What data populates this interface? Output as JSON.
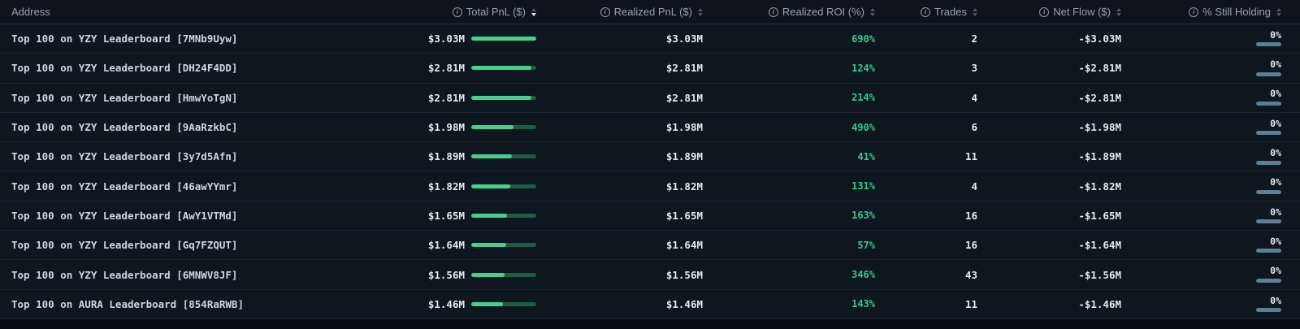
{
  "colors": {
    "page-bg": "#070b12",
    "row-bg": "#0e1620",
    "header-bg": "#0d141d",
    "accent-green": "#46d08d",
    "bar-track-green": "#1e5c44",
    "roi-green": "#34c98a",
    "holding-slate": "#5d7f91"
  },
  "table": {
    "columns": [
      {
        "key": "address",
        "label": "Address",
        "info": false,
        "sortable": false
      },
      {
        "key": "total-pnl",
        "label": "Total PnL ($)",
        "info": true,
        "sortable": true,
        "sort": "desc"
      },
      {
        "key": "realized-pnl",
        "label": "Realized PnL ($)",
        "info": true,
        "sortable": true
      },
      {
        "key": "realized-roi",
        "label": "Realized ROI (%)",
        "info": true,
        "sortable": true
      },
      {
        "key": "trades",
        "label": "Trades",
        "info": true,
        "sortable": true
      },
      {
        "key": "net-flow",
        "label": "Net Flow ($)",
        "info": true,
        "sortable": true
      },
      {
        "key": "still-holding",
        "label": "% Still Holding",
        "info": true,
        "sortable": true
      }
    ],
    "rows": [
      {
        "address": "Top 100 on YZY Leaderboard [7MNb9Uyw]",
        "total_pnl": "$3.03M",
        "total_pnl_bar_pct": 100,
        "realized_pnl": "$3.03M",
        "realized_roi": "690%",
        "trades": "2",
        "net_flow": "-$3.03M",
        "still_holding": "0%",
        "still_holding_bar_pct": 0
      },
      {
        "address": "Top 100 on YZY Leaderboard [DH24F4DD]",
        "total_pnl": "$2.81M",
        "total_pnl_bar_pct": 92.7,
        "realized_pnl": "$2.81M",
        "realized_roi": "124%",
        "trades": "3",
        "net_flow": "-$2.81M",
        "still_holding": "0%",
        "still_holding_bar_pct": 0
      },
      {
        "address": "Top 100 on YZY Leaderboard [HmwYoTgN]",
        "total_pnl": "$2.81M",
        "total_pnl_bar_pct": 92.7,
        "realized_pnl": "$2.81M",
        "realized_roi": "214%",
        "trades": "4",
        "net_flow": "-$2.81M",
        "still_holding": "0%",
        "still_holding_bar_pct": 0
      },
      {
        "address": "Top 100 on YZY Leaderboard [9AaRzkbC]",
        "total_pnl": "$1.98M",
        "total_pnl_bar_pct": 65.3,
        "realized_pnl": "$1.98M",
        "realized_roi": "490%",
        "trades": "6",
        "net_flow": "-$1.98M",
        "still_holding": "0%",
        "still_holding_bar_pct": 0
      },
      {
        "address": "Top 100 on YZY Leaderboard [3y7d5Afn]",
        "total_pnl": "$1.89M",
        "total_pnl_bar_pct": 62.4,
        "realized_pnl": "$1.89M",
        "realized_roi": "41%",
        "trades": "11",
        "net_flow": "-$1.89M",
        "still_holding": "0%",
        "still_holding_bar_pct": 0
      },
      {
        "address": "Top 100 on YZY Leaderboard [46awYYmr]",
        "total_pnl": "$1.82M",
        "total_pnl_bar_pct": 60.1,
        "realized_pnl": "$1.82M",
        "realized_roi": "131%",
        "trades": "4",
        "net_flow": "-$1.82M",
        "still_holding": "0%",
        "still_holding_bar_pct": 0
      },
      {
        "address": "Top 100 on YZY Leaderboard [AwY1VTMd]",
        "total_pnl": "$1.65M",
        "total_pnl_bar_pct": 54.5,
        "realized_pnl": "$1.65M",
        "realized_roi": "163%",
        "trades": "16",
        "net_flow": "-$1.65M",
        "still_holding": "0%",
        "still_holding_bar_pct": 0
      },
      {
        "address": "Top 100 on YZY Leaderboard [Gq7FZQUT]",
        "total_pnl": "$1.64M",
        "total_pnl_bar_pct": 54.1,
        "realized_pnl": "$1.64M",
        "realized_roi": "57%",
        "trades": "16",
        "net_flow": "-$1.64M",
        "still_holding": "0%",
        "still_holding_bar_pct": 0
      },
      {
        "address": "Top 100 on YZY Leaderboard [6MNWV8JF]",
        "total_pnl": "$1.56M",
        "total_pnl_bar_pct": 51.5,
        "realized_pnl": "$1.56M",
        "realized_roi": "346%",
        "trades": "43",
        "net_flow": "-$1.56M",
        "still_holding": "0%",
        "still_holding_bar_pct": 0
      },
      {
        "address": "Top 100 on AURA Leaderboard [854RaRWB]",
        "total_pnl": "$1.46M",
        "total_pnl_bar_pct": 48.2,
        "realized_pnl": "$1.46M",
        "realized_roi": "143%",
        "trades": "11",
        "net_flow": "-$1.46M",
        "still_holding": "0%",
        "still_holding_bar_pct": 0
      }
    ]
  }
}
